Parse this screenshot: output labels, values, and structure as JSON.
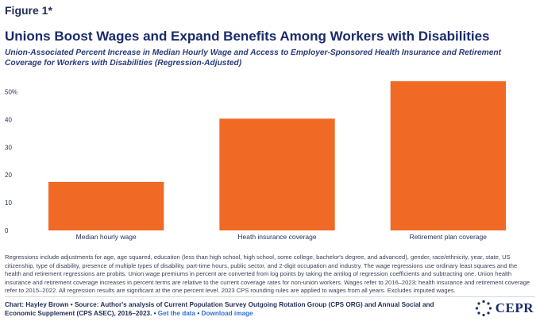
{
  "figure_label": "Figure 1*",
  "title": "Unions Boost Wages and Expand Benefits Among Workers with Disabilities",
  "subtitle": "Union-Associated Percent Increase in Median Hourly Wage and Access to Employer-Sponsored Health Insurance and Retirement Coverage for Workers with Disabilities (Regression-Adjusted)",
  "chart_data": {
    "type": "bar",
    "categories": [
      "Median hourly wage",
      "Heath insurance coverage",
      "Retirement plan coverage"
    ],
    "values": [
      17.5,
      40.3,
      53.8
    ],
    "ylim": [
      0,
      55
    ],
    "yticks": [
      0,
      10,
      20,
      30,
      40,
      50
    ],
    "ytick_labels": [
      "0",
      "10",
      "20",
      "30",
      "40",
      "50%"
    ],
    "bar_color": "#f06a26",
    "grid": false,
    "xlabel": "",
    "ylabel": ""
  },
  "notes": "Regressions include adjustments for age, age squared, education (less than high school, high school, some college, bachelor's degree, and advanced), gender, race/ethnicity, year, state, US citizenship, type of disability, presence of multiple types of disability, part-time hours, public sector, and 2-digit occupation and industry. The wage regressions use ordinary least squares and the health and retirement regressions are probits. Union wage premiums in percent are converted from log points by taking the antilog of regression coefficients and subtracting one. Union health insurance and retirement coverage increases in percent terms are relative to the current coverage rates for non-union workers. Wages refer to 2016–2023; health insurance and retirement coverage refer to 2015–2022. All regression results are significant at the one percent level. 2023 CPS rounding rules are applied to wages from all years. Excludes imputed wages.",
  "credits": {
    "text": "Chart: Hayley Brown • Source: Author's analysis of Current Population Survey Outgoing Rotation Group (CPS ORG) and Annual Social and Economic Supplement (CPS ASEC), 2016–2023. •",
    "link_data": "Get the data",
    "separator": "•",
    "link_image": "Download image"
  },
  "logo": {
    "text": "CEPR",
    "icon": "stars-circle-icon"
  }
}
